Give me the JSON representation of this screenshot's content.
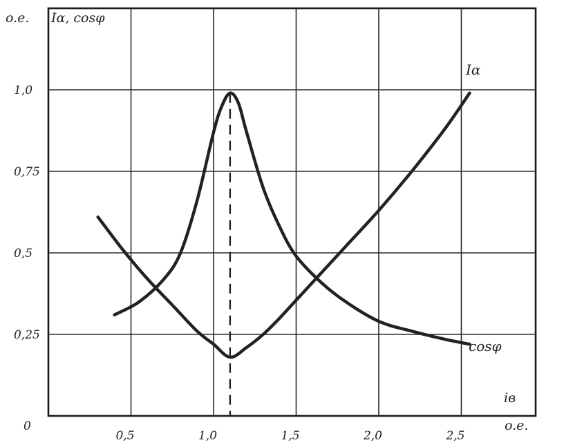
{
  "chart_data": {
    "type": "line",
    "ylabel": "Iα, cosφ",
    "y_unit": "o.e.",
    "xlabel": "iв",
    "x_unit": "o.e.",
    "origin_label": "0",
    "xlim": [
      0,
      2.95
    ],
    "ylim": [
      0,
      1.25
    ],
    "x_ticks": [
      {
        "value": 0.5,
        "label": "0,5"
      },
      {
        "value": 1.0,
        "label": "1,0"
      },
      {
        "value": 1.5,
        "label": "1,5"
      },
      {
        "value": 2.0,
        "label": "2,0"
      },
      {
        "value": 2.5,
        "label": "2,5"
      }
    ],
    "y_ticks": [
      {
        "value": 0.25,
        "label": "0,25"
      },
      {
        "value": 0.5,
        "label": "0,5"
      },
      {
        "value": 0.75,
        "label": "0,75"
      },
      {
        "value": 1.0,
        "label": "1,0"
      }
    ],
    "grid": true,
    "marker_x": 1.1,
    "series": [
      {
        "name": "Iα",
        "x": [
          0.3,
          0.45,
          0.6,
          0.75,
          0.9,
          1.0,
          1.1,
          1.2,
          1.3,
          1.4,
          1.6,
          1.8,
          2.0,
          2.2,
          2.4,
          2.55
        ],
        "y": [
          0.61,
          0.51,
          0.42,
          0.34,
          0.26,
          0.22,
          0.18,
          0.21,
          0.25,
          0.3,
          0.41,
          0.52,
          0.63,
          0.75,
          0.88,
          0.99
        ]
      },
      {
        "name": "cosφ",
        "x": [
          0.4,
          0.55,
          0.7,
          0.8,
          0.9,
          1.0,
          1.05,
          1.1,
          1.15,
          1.2,
          1.3,
          1.4,
          1.5,
          1.65,
          1.8,
          2.0,
          2.2,
          2.4,
          2.55
        ],
        "y": [
          0.31,
          0.35,
          0.42,
          0.5,
          0.66,
          0.87,
          0.95,
          0.99,
          0.96,
          0.87,
          0.7,
          0.58,
          0.49,
          0.41,
          0.35,
          0.29,
          0.26,
          0.235,
          0.22
        ]
      }
    ]
  }
}
